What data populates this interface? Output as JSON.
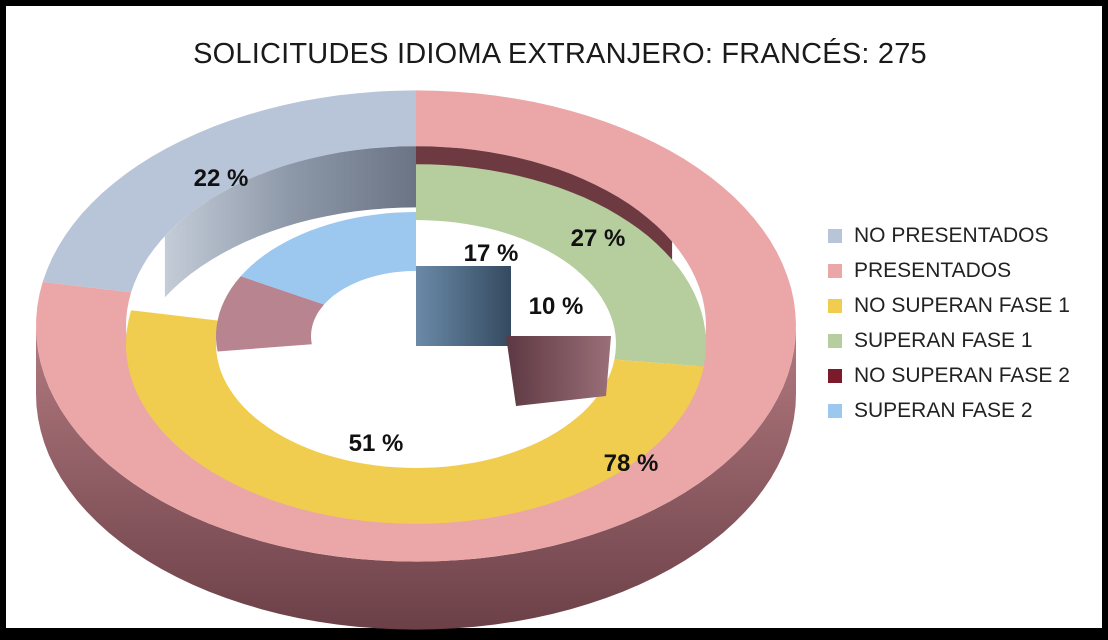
{
  "chart_data": {
    "type": "pie",
    "style": "3d-doughnut",
    "title": "SOLICITUDES IDIOMA EXTRANJERO: FRANCÉS: 275",
    "legend_position": "right",
    "rings": [
      {
        "name": "outer",
        "slices": [
          {
            "label": "NO PRESENTADOS",
            "value": 22,
            "color": "#b8c4d8"
          },
          {
            "label": "PRESENTADOS",
            "value": 78,
            "color": "#eba7a7"
          }
        ]
      },
      {
        "name": "middle",
        "slices": [
          {
            "label": "SUPERAN FASE 1",
            "value": 27,
            "color": "#b6cd9d"
          },
          {
            "label": "NO SUPERAN FASE 1",
            "value": 51,
            "color": "#f1cd4f"
          }
        ]
      },
      {
        "name": "inner",
        "slices": [
          {
            "label": "NO SUPERAN FASE 2",
            "value": 10,
            "color": "#b7848f"
          },
          {
            "label": "SUPERAN FASE 2",
            "value": 17,
            "color": "#9cc7ef"
          }
        ]
      }
    ],
    "data_labels": [
      "22 %",
      "78 %",
      "27 %",
      "51 %",
      "10 %",
      "17 %"
    ],
    "legend": [
      {
        "label": "NO PRESENTADOS",
        "color": "#b8c4d8"
      },
      {
        "label": "PRESENTADOS",
        "color": "#eba7a7"
      },
      {
        "label": "NO SUPERAN FASE 1",
        "color": "#f1cd4f"
      },
      {
        "label": "SUPERAN FASE 1",
        "color": "#b6cd9d"
      },
      {
        "label": "NO SUPERAN FASE 2",
        "color": "#7a1a2a"
      },
      {
        "label": "SUPERAN FASE 2",
        "color": "#9cc7ef"
      }
    ]
  }
}
